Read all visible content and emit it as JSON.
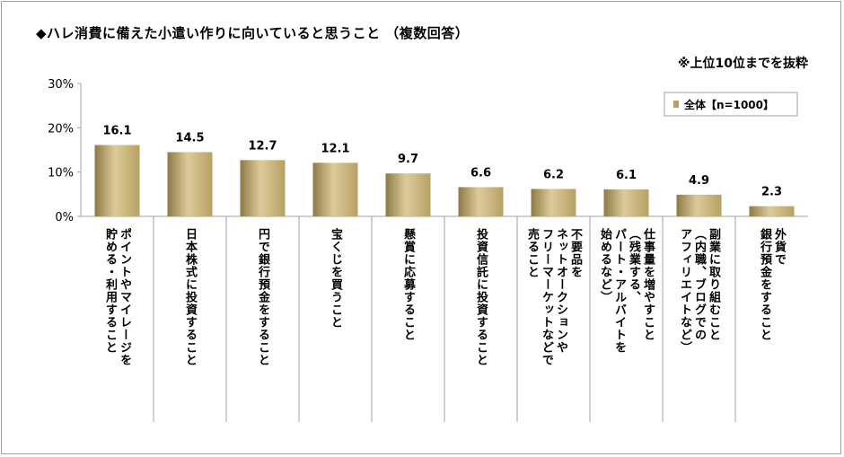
{
  "chart_data": {
    "type": "bar",
    "title": "◆ハレ消費に備えた小遣い作りに向いていると思うこと （複数回答）",
    "note": "※上位10位までを抜粋",
    "ylim": [
      0,
      30
    ],
    "yticks": [
      "0%",
      "10%",
      "20%",
      "30%"
    ],
    "ytick_values": [
      0,
      10,
      20,
      30
    ],
    "grid": false,
    "legend_position": "top-right",
    "series": [
      {
        "name": "全体【n=1000】",
        "values": [
          16.1,
          14.5,
          12.7,
          12.1,
          9.7,
          6.6,
          6.2,
          6.1,
          4.9,
          2.3
        ]
      }
    ],
    "value_labels": [
      "16.1",
      "14.5",
      "12.7",
      "12.1",
      "9.7",
      "6.6",
      "6.2",
      "6.1",
      "4.9",
      "2.3"
    ],
    "categories": [
      [
        "ポイントやマイレージを",
        "貯める・利用すること"
      ],
      [
        "日本株式に投資すること"
      ],
      [
        "円で銀行預金をすること"
      ],
      [
        "宝くじを買うこと"
      ],
      [
        "懸賞に応募すること"
      ],
      [
        "投資信託に投資すること"
      ],
      [
        "不要品を",
        "ネットオークションや",
        "フリーマーケットなどで",
        "売ること"
      ],
      [
        "仕事量を増やすこと",
        "（残業する、",
        "パート・アルバイトを",
        "始めるなど）"
      ],
      [
        "副業に取り組むこと",
        "（内職、ブログでの",
        "アフィリエイトなど）"
      ],
      [
        "外貨で",
        "銀行預金をすること"
      ]
    ],
    "colors": {
      "bar": "#b8a063",
      "bar_light": "#dccb9a",
      "bar_dark": "#8f7a45",
      "axis": "#a0a0a0"
    }
  }
}
